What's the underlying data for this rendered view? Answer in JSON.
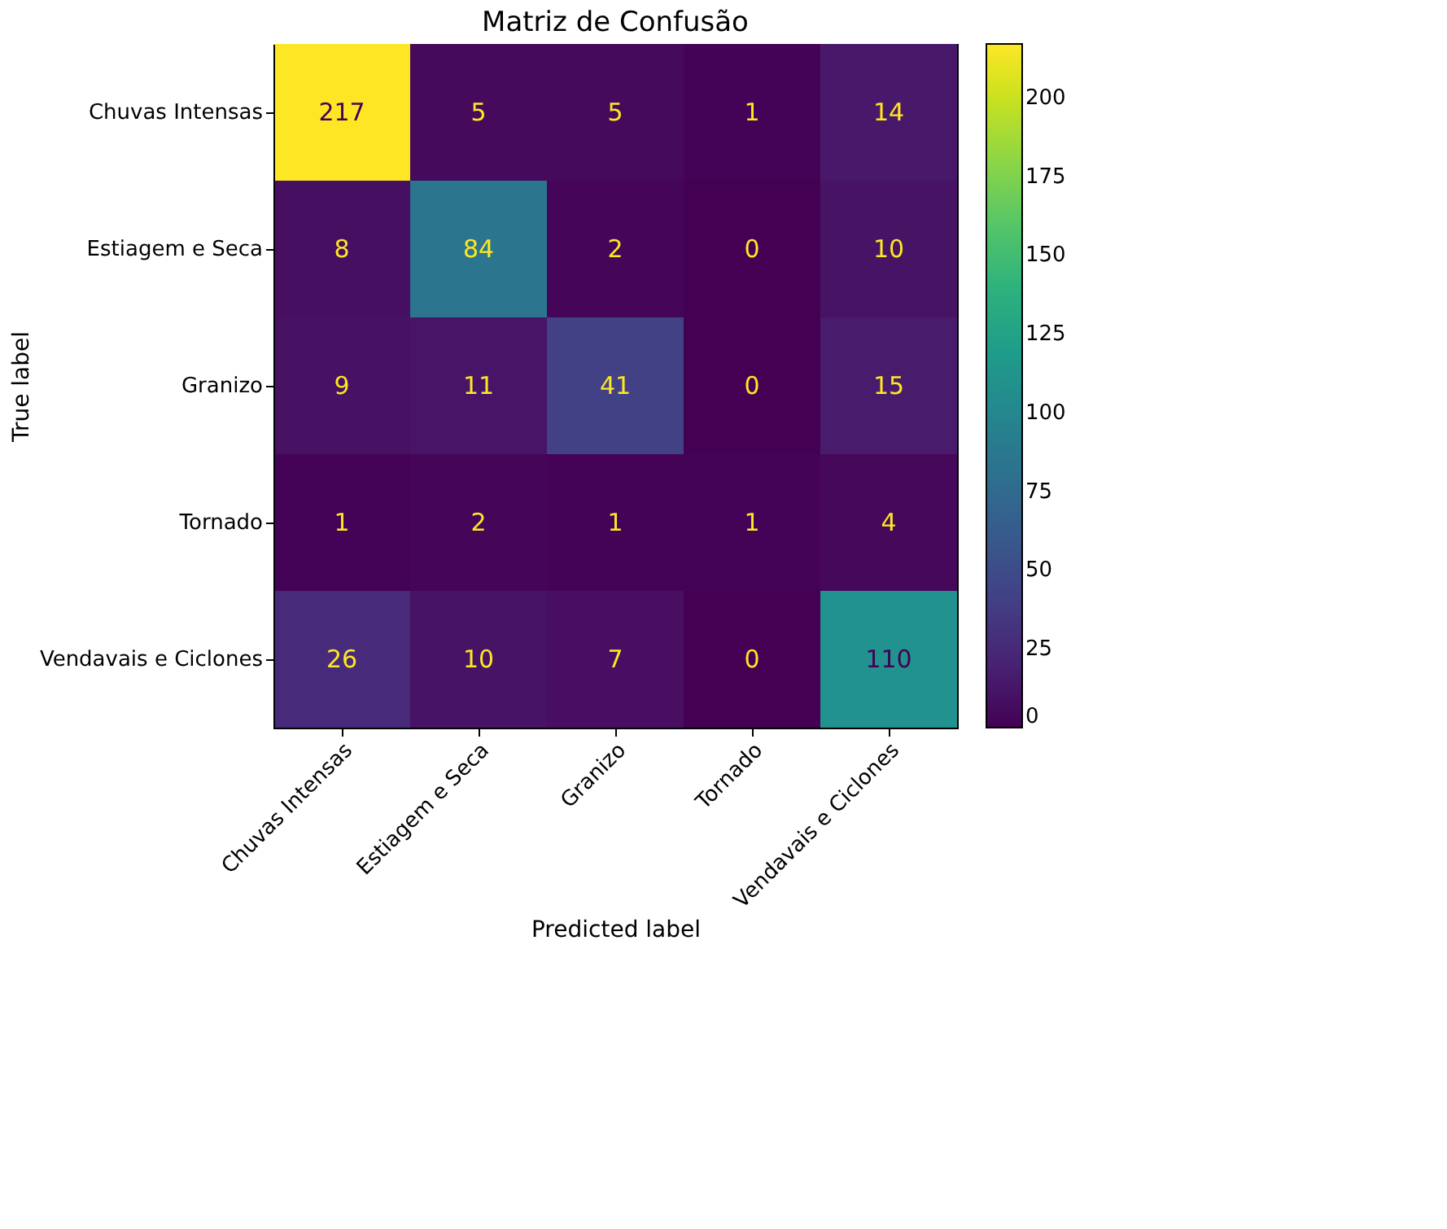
{
  "chart_data": {
    "type": "heatmap",
    "title": "Matriz de Confusão",
    "xlabel": "Predicted label",
    "ylabel": "True label",
    "categories": [
      "Chuvas Intensas",
      "Estiagem e Seca",
      "Granizo",
      "Tornado",
      "Vendavais e Ciclones"
    ],
    "y_categories": [
      "Chuvas Intensas",
      "Estiagem e Seca",
      "Granizo",
      "Tornado",
      "Vendavais e Ciclones"
    ],
    "cells": [
      [
        217,
        5,
        5,
        1,
        14
      ],
      [
        8,
        84,
        2,
        0,
        10
      ],
      [
        9,
        11,
        41,
        0,
        15
      ],
      [
        1,
        2,
        1,
        1,
        4
      ],
      [
        26,
        10,
        7,
        0,
        110
      ]
    ],
    "clim": [
      0,
      217
    ],
    "cticks": [
      0,
      25,
      50,
      75,
      100,
      125,
      150,
      175,
      200
    ],
    "data_labels": true,
    "grid": false
  }
}
